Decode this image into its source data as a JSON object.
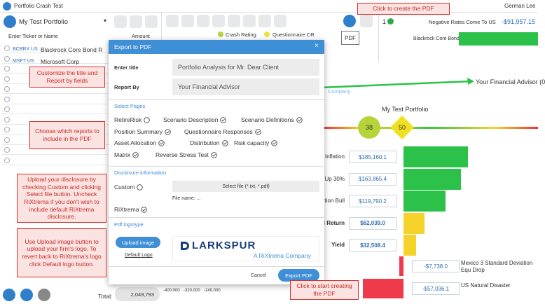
{
  "app": {
    "title": "Portfolio Crash Test",
    "user": "German Lee"
  },
  "portfolio": {
    "name": "My Test Portfolio",
    "ticker_placeholder": "Enter Ticker or Name",
    "amount_label": "Amount",
    "holdings": [
      {
        "ticker": "BCBRX US",
        "name": "Blackrock Core Bond R"
      },
      {
        "ticker": "MSFT US",
        "name": "Microsoft Corp"
      }
    ],
    "total_label": "Total:",
    "total": "2,049,793"
  },
  "toolbar": {
    "crash_rating": "Crash Rating",
    "questionnaire": "Questionnaire CR",
    "pdf_tooltip": "PDF"
  },
  "scenario_panel": {
    "index": "1",
    "scenario": "Negative Rates Come To US",
    "value": "-$91,957.15",
    "holding": "Blackrock Core Bond R"
  },
  "report": {
    "title": "My Test Portfolio",
    "score_portfolio": "38",
    "score_questionnaire": "50",
    "advisor": "Your Financial Advisor (0",
    "company": "Company",
    "rows": [
      {
        "label": "Inflation",
        "value": "$185,160.1"
      },
      {
        "label": "Up 30%",
        "value": "$163,865.4"
      },
      {
        "label": "tion Bull",
        "value": "$119,790.2"
      },
      {
        "label": "d Return",
        "value": "$62,039.0"
      },
      {
        "label": "Yield",
        "value": "$32,508.4"
      }
    ],
    "losses": [
      {
        "label": "Mexico 3 Standard Deviation Equ Drop",
        "value": "-$7,738.0"
      },
      {
        "label": "US Natural Disaster",
        "value": "-$57,036.1"
      }
    ],
    "axis": [
      "-400,000",
      "-320,000",
      "-240,000"
    ]
  },
  "dialog": {
    "title": "Export to PDF",
    "title_label": "Enter title",
    "title_value": "Portfolio Analysis for Mr. Dear Client",
    "report_by_label": "Report By",
    "report_by_value": "Your Financial Advisor",
    "pages_heading": "Select Pages",
    "pages": [
      {
        "label": "RetireRisk",
        "checked": false
      },
      {
        "label": "Scenario Description",
        "checked": true
      },
      {
        "label": "Scenario Definitions",
        "checked": true
      },
      {
        "label": "Position Summary",
        "checked": true
      },
      {
        "label": "Questionnaire Responses",
        "checked": true
      },
      {
        "label": "Asset Allocation",
        "checked": true
      },
      {
        "label": "Distribution",
        "checked": true
      },
      {
        "label": "Risk capacity",
        "checked": true
      },
      {
        "label": "Matrix",
        "checked": true
      },
      {
        "label": "Reverse Stress Test",
        "checked": true
      }
    ],
    "disclosure_heading": "Disclosure information",
    "custom": {
      "label": "Custom",
      "checked": false
    },
    "select_file": "Select file (*.txt, *.pdf)",
    "file_name": "File name: ...",
    "rixtrema": {
      "label": "RiXtrema",
      "checked": true
    },
    "logo_heading": "Pdf logotype",
    "upload_image": "Upload image",
    "default_logo": "Default Logo",
    "logo_name": "LARKSPUR",
    "logo_tagline": "A RiXtrema Company",
    "cancel": "Cancel",
    "export": "Export PDF"
  },
  "callouts": [
    "Click to create the PDF",
    "Customize the title and Report by fields",
    "Choose which reports to include in the PDF",
    "Upload your disclosure by checking Custom and clicking Select file button. Uncheck RiXtrema if you don't wish to include default RiXtrema disclosure.",
    "Use Upload image button to upload your firm's logo. To revert back to RiXtrema's logo click Default logo button.",
    "Click to start creating the PDF"
  ]
}
